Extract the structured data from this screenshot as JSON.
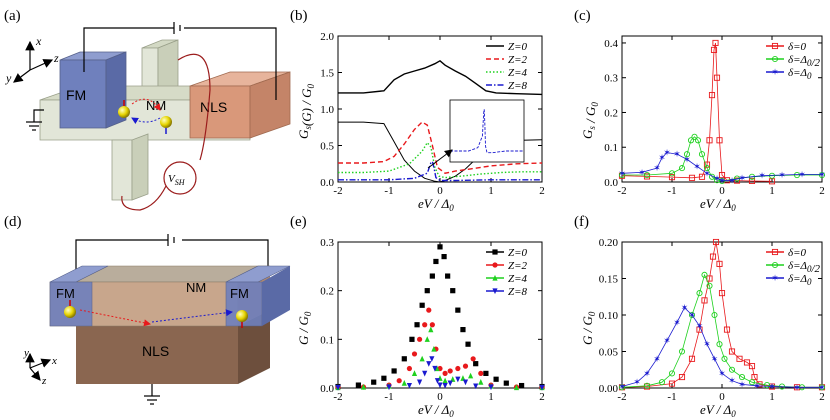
{
  "panels": {
    "a": {
      "label": "(a)",
      "blocks": {
        "fm": "FM",
        "nm": "NM",
        "nls": "NLS"
      },
      "meter": "V_SH",
      "axes": [
        "x",
        "y",
        "z"
      ]
    },
    "d": {
      "label": "(d)",
      "blocks": {
        "fm_left": "FM",
        "nm": "NM",
        "fm_right": "FM",
        "nls": "NLS"
      },
      "axes": [
        "x",
        "y",
        "z"
      ]
    },
    "b": {
      "label": "(b)"
    },
    "c": {
      "label": "(c)"
    },
    "e": {
      "label": "(e)"
    },
    "f": {
      "label": "(f)"
    }
  },
  "colors": {
    "black": "#000000",
    "red": "#e8191c",
    "green": "#1fd11f",
    "blue": "#1a1acf",
    "fm_block": "#6f80bd",
    "nls_block": "#d9987a",
    "nls_bottom": "#8a6650",
    "nm_block": "#e2e6d8"
  },
  "chart_data": [
    {
      "panel": "b",
      "type": "line",
      "ylabel": "G_s(G) / G_0",
      "xlabel": "eV / Δ_0",
      "xlim": [
        -2,
        2
      ],
      "ylim": [
        0,
        2.0
      ],
      "xticks": [
        -2,
        -1,
        0,
        1,
        2
      ],
      "yticks": [
        0.0,
        0.5,
        1.0,
        1.5,
        2.0
      ],
      "legend": {
        "position": "top-right",
        "entries": [
          "Z=0",
          "Z=2",
          "Z=4",
          "Z=8"
        ]
      },
      "series": [
        {
          "name": "Z=0",
          "color": "#000000",
          "style": "solid",
          "x": [
            -2,
            -1.5,
            -1.1,
            -0.9,
            -0.7,
            -0.5,
            -0.3,
            -0.1,
            0,
            0.1,
            0.3,
            0.5,
            0.7,
            0.9,
            1.1,
            1.5,
            2
          ],
          "y": [
            1.22,
            1.22,
            1.25,
            1.4,
            1.48,
            1.52,
            1.56,
            1.62,
            1.66,
            1.6,
            1.52,
            1.45,
            1.35,
            1.25,
            1.22,
            1.21,
            1.2
          ]
        },
        {
          "name": "Z=0 (G_s)",
          "color": "#000000",
          "style": "solid-thin",
          "x": [
            -2,
            -1.5,
            -1.1,
            -0.9,
            -0.7,
            -0.5,
            -0.3,
            -0.1,
            0,
            0.1,
            0.3,
            0.5,
            0.8,
            1.0,
            1.1,
            1.5,
            2
          ],
          "y": [
            0.82,
            0.82,
            0.8,
            0.55,
            0.3,
            0.15,
            0.05,
            0.01,
            0,
            0.02,
            0.08,
            0.18,
            0.38,
            0.52,
            0.55,
            0.57,
            0.58
          ]
        },
        {
          "name": "Z=2",
          "color": "#e8191c",
          "style": "dashed",
          "x": [
            -2,
            -1.5,
            -1.1,
            -0.9,
            -0.7,
            -0.5,
            -0.35,
            -0.25,
            -0.15,
            -0.05,
            0.1,
            0.3,
            0.6,
            1.0,
            1.5,
            2
          ],
          "y": [
            0.26,
            0.26,
            0.28,
            0.35,
            0.52,
            0.72,
            0.82,
            0.78,
            0.5,
            0.2,
            0.12,
            0.15,
            0.18,
            0.22,
            0.25,
            0.26
          ]
        },
        {
          "name": "Z=4",
          "color": "#1fd11f",
          "style": "dotted",
          "x": [
            -2,
            -1.5,
            -1.0,
            -0.6,
            -0.35,
            -0.25,
            -0.18,
            -0.1,
            -0.02,
            0.1,
            0.4,
            0.8,
            1.2,
            1.6,
            2
          ],
          "y": [
            0.13,
            0.13,
            0.15,
            0.25,
            0.42,
            0.54,
            0.48,
            0.2,
            0.08,
            0.06,
            0.08,
            0.11,
            0.13,
            0.14,
            0.14
          ]
        },
        {
          "name": "Z=8",
          "color": "#1a1acf",
          "style": "dash-dot",
          "x": [
            -2,
            -1.0,
            -0.5,
            -0.25,
            -0.18,
            -0.15,
            -0.12,
            -0.08,
            0,
            0.3,
            1.0,
            2
          ],
          "y": [
            0.03,
            0.03,
            0.05,
            0.12,
            0.26,
            0.28,
            0.2,
            0.06,
            0.02,
            0.02,
            0.03,
            0.03
          ]
        }
      ]
    },
    {
      "panel": "c",
      "type": "line",
      "ylabel": "G_s / G_0",
      "xlabel": "eV / Δ_0",
      "xlim": [
        -2,
        2
      ],
      "ylim": [
        0,
        0.42
      ],
      "xticks": [
        -2,
        -1,
        0,
        1,
        2
      ],
      "yticks": [
        0.0,
        0.1,
        0.2,
        0.3,
        0.4
      ],
      "legend": {
        "position": "top-right",
        "entries": [
          "δ=0",
          "δ=Δ_0/2",
          "δ=Δ_0"
        ]
      },
      "series": [
        {
          "name": "δ=0",
          "color": "#e8191c",
          "marker": "square-open",
          "x": [
            -2,
            -1.5,
            -1.0,
            -0.6,
            -0.4,
            -0.3,
            -0.25,
            -0.2,
            -0.16,
            -0.13,
            -0.1,
            -0.05,
            0.0,
            0.1,
            0.3,
            0.6,
            1.0
          ],
          "y": [
            0.018,
            0.016,
            0.014,
            0.012,
            0.015,
            0.05,
            0.12,
            0.25,
            0.38,
            0.4,
            0.3,
            0.12,
            0.02,
            0.005,
            0.004,
            0.003,
            0.002
          ]
        },
        {
          "name": "δ=Δ_0/2",
          "color": "#1fd11f",
          "marker": "circle-open",
          "x": [
            -2,
            -1.5,
            -1.0,
            -0.8,
            -0.7,
            -0.62,
            -0.55,
            -0.48,
            -0.4,
            -0.3,
            -0.2,
            -0.1,
            0.0,
            0.3,
            0.6,
            1.0,
            1.5,
            2
          ],
          "y": [
            0.02,
            0.02,
            0.025,
            0.04,
            0.08,
            0.12,
            0.13,
            0.12,
            0.08,
            0.04,
            0.015,
            0.005,
            0.003,
            0.01,
            0.015,
            0.018,
            0.02,
            0.02
          ]
        },
        {
          "name": "δ=Δ_0",
          "color": "#1a1acf",
          "marker": "star",
          "x": [
            -2,
            -1.6,
            -1.3,
            -1.2,
            -1.1,
            -0.9,
            -0.7,
            -0.5,
            -0.3,
            -0.1,
            0.0,
            0.2,
            0.4,
            0.8,
            1.2,
            1.6,
            2
          ],
          "y": [
            0.025,
            0.028,
            0.04,
            0.07,
            0.085,
            0.08,
            0.065,
            0.045,
            0.025,
            0.01,
            0.004,
            0.005,
            0.012,
            0.018,
            0.02,
            0.022,
            0.022
          ]
        }
      ]
    },
    {
      "panel": "e",
      "type": "scatter",
      "ylabel": "G / G_0",
      "xlabel": "eV / Δ_0",
      "xlim": [
        -2,
        2
      ],
      "ylim": [
        0,
        0.3
      ],
      "xticks": [
        -2,
        -1,
        0,
        1,
        2
      ],
      "yticks": [
        0.0,
        0.1,
        0.2,
        0.3
      ],
      "legend": {
        "position": "top-right",
        "entries": [
          "Z=0",
          "Z=2",
          "Z=4",
          "Z=8"
        ]
      },
      "series": [
        {
          "name": "Z=0",
          "color": "#000000",
          "marker": "square",
          "x": [
            -2,
            -1.6,
            -1.3,
            -1.1,
            -0.9,
            -0.7,
            -0.55,
            -0.45,
            -0.35,
            -0.25,
            -0.15,
            -0.08,
            0,
            0.08,
            0.15,
            0.25,
            0.35,
            0.45,
            0.55,
            0.7,
            0.9,
            1.1,
            1.3,
            1.6,
            2
          ],
          "y": [
            0.003,
            0.006,
            0.012,
            0.02,
            0.035,
            0.06,
            0.1,
            0.13,
            0.17,
            0.2,
            0.23,
            0.26,
            0.29,
            0.27,
            0.23,
            0.2,
            0.16,
            0.12,
            0.09,
            0.05,
            0.03,
            0.018,
            0.01,
            0.005,
            0.003
          ]
        },
        {
          "name": "Z=2",
          "color": "#e8191c",
          "marker": "circle",
          "x": [
            -2,
            -1.5,
            -1.0,
            -0.8,
            -0.6,
            -0.5,
            -0.4,
            -0.3,
            -0.22,
            -0.15,
            -0.08,
            0,
            0.1,
            0.2,
            0.35,
            0.5,
            0.65,
            0.8,
            1.0,
            1.5,
            2
          ],
          "y": [
            0.001,
            0.002,
            0.006,
            0.015,
            0.04,
            0.07,
            0.1,
            0.13,
            0.16,
            0.13,
            0.08,
            0.04,
            0.03,
            0.035,
            0.04,
            0.045,
            0.06,
            0.03,
            0.006,
            0.002,
            0.001
          ]
        },
        {
          "name": "Z=4",
          "color": "#1fd11f",
          "marker": "triangle",
          "x": [
            -2,
            -1.5,
            -1.0,
            -0.7,
            -0.5,
            -0.35,
            -0.25,
            -0.18,
            -0.12,
            -0.06,
            0,
            0.1,
            0.25,
            0.45,
            0.6,
            0.8,
            1.0,
            1.5,
            2
          ],
          "y": [
            0.001,
            0.002,
            0.004,
            0.01,
            0.03,
            0.06,
            0.1,
            0.12,
            0.08,
            0.04,
            0.02,
            0.015,
            0.018,
            0.02,
            0.025,
            0.012,
            0.004,
            0.001,
            0.001
          ]
        },
        {
          "name": "Z=8",
          "color": "#1a1acf",
          "marker": "triangle-down",
          "x": [
            -2,
            -1.0,
            -0.6,
            -0.4,
            -0.3,
            -0.22,
            -0.16,
            -0.1,
            -0.05,
            0,
            0.1,
            0.2,
            0.35,
            0.5,
            0.7,
            1.0,
            2
          ],
          "y": [
            0.001,
            0.002,
            0.005,
            0.012,
            0.03,
            0.05,
            0.06,
            0.04,
            0.015,
            0.006,
            0.005,
            0.01,
            0.018,
            0.012,
            0.004,
            0.002,
            0.001
          ]
        }
      ]
    },
    {
      "panel": "f",
      "type": "line",
      "ylabel": "G / G_0",
      "xlabel": "eV / Δ_0",
      "xlim": [
        -2,
        2
      ],
      "ylim": [
        0,
        0.2
      ],
      "xticks": [
        -2,
        -1,
        0,
        1,
        2
      ],
      "yticks": [
        0.0,
        0.05,
        0.1,
        0.15,
        0.2
      ],
      "legend": {
        "position": "top-right",
        "entries": [
          "δ=0",
          "δ=Δ_0/2",
          "δ=Δ_0"
        ]
      },
      "series": [
        {
          "name": "δ=0",
          "color": "#e8191c",
          "marker": "square-open",
          "x": [
            -2,
            -1.5,
            -1.0,
            -0.8,
            -0.6,
            -0.45,
            -0.35,
            -0.25,
            -0.18,
            -0.12,
            -0.05,
            0,
            0.1,
            0.2,
            0.35,
            0.5,
            0.6,
            0.65,
            0.75,
            1.0,
            1.5,
            2
          ],
          "y": [
            0.001,
            0.002,
            0.006,
            0.015,
            0.04,
            0.08,
            0.12,
            0.15,
            0.18,
            0.2,
            0.17,
            0.13,
            0.08,
            0.05,
            0.04,
            0.035,
            0.03,
            0.015,
            0.005,
            0.002,
            0.001,
            0.001
          ]
        },
        {
          "name": "δ=Δ_0/2",
          "color": "#1fd11f",
          "marker": "circle-open",
          "x": [
            -2,
            -1.5,
            -1.2,
            -1.0,
            -0.8,
            -0.6,
            -0.45,
            -0.35,
            -0.25,
            -0.15,
            -0.05,
            0.05,
            0.2,
            0.4,
            0.6,
            0.9,
            1.2,
            1.6,
            2
          ],
          "y": [
            0.001,
            0.003,
            0.008,
            0.02,
            0.05,
            0.1,
            0.13,
            0.155,
            0.14,
            0.1,
            0.06,
            0.04,
            0.025,
            0.015,
            0.008,
            0.004,
            0.002,
            0.001,
            0.001
          ]
        },
        {
          "name": "δ=Δ_0",
          "color": "#1a1acf",
          "marker": "star",
          "x": [
            -2,
            -1.7,
            -1.5,
            -1.3,
            -1.1,
            -0.9,
            -0.75,
            -0.6,
            -0.45,
            -0.3,
            -0.15,
            0,
            0.2,
            0.4,
            0.7,
            1.0,
            1.5,
            2
          ],
          "y": [
            0.002,
            0.008,
            0.02,
            0.04,
            0.065,
            0.09,
            0.11,
            0.1,
            0.085,
            0.06,
            0.04,
            0.02,
            0.01,
            0.005,
            0.003,
            0.002,
            0.001,
            0.001
          ]
        }
      ]
    }
  ]
}
